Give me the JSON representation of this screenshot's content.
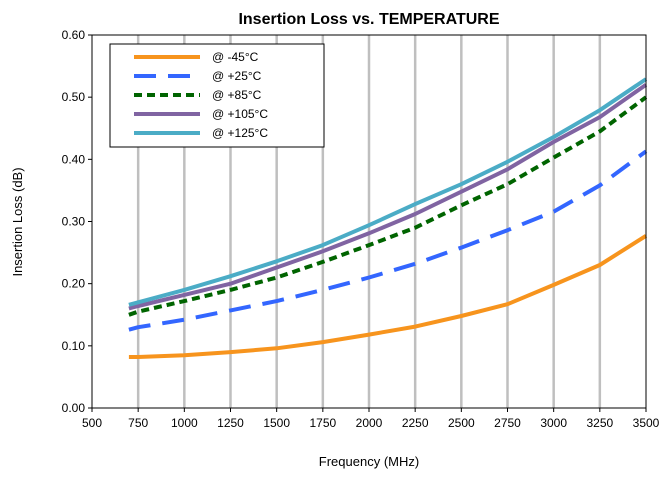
{
  "chart_data": {
    "type": "line",
    "title": "Insertion Loss vs. TEMPERATURE",
    "xlabel": "Frequency (MHz)",
    "ylabel": "Insertion Loss (dB)",
    "xlim": [
      500,
      3500
    ],
    "ylim": [
      0.0,
      0.6
    ],
    "x_ticks": [
      "500",
      "750",
      "1000",
      "1250",
      "1500",
      "1750",
      "2000",
      "2250",
      "2500",
      "2750",
      "3000",
      "3250",
      "3500"
    ],
    "y_ticks": [
      "0.00",
      "0.10",
      "0.20",
      "0.30",
      "0.40",
      "0.50",
      "0.60"
    ],
    "grid": "vertical",
    "legend_position": "top-left",
    "x": [
      700,
      750,
      1000,
      1250,
      1500,
      1750,
      2000,
      2250,
      2500,
      2750,
      3000,
      3250,
      3500
    ],
    "series": [
      {
        "name": "@ -45°C",
        "color": "#F7941D",
        "dash": "solid",
        "values": [
          0.082,
          0.082,
          0.085,
          0.09,
          0.096,
          0.106,
          0.118,
          0.131,
          0.148,
          0.167,
          0.198,
          0.23,
          0.277
        ]
      },
      {
        "name": "@ +25°C",
        "color": "#3366FF",
        "dash": "long",
        "values": [
          0.126,
          0.13,
          0.142,
          0.157,
          0.172,
          0.19,
          0.21,
          0.232,
          0.258,
          0.286,
          0.316,
          0.358,
          0.413
        ]
      },
      {
        "name": "@ +85°C",
        "color": "#006400",
        "dash": "short",
        "values": [
          0.15,
          0.155,
          0.172,
          0.19,
          0.21,
          0.235,
          0.262,
          0.29,
          0.326,
          0.36,
          0.403,
          0.445,
          0.5
        ]
      },
      {
        "name": "@ +105°C",
        "color": "#8064A2",
        "dash": "solid",
        "values": [
          0.16,
          0.164,
          0.182,
          0.2,
          0.226,
          0.252,
          0.281,
          0.312,
          0.348,
          0.384,
          0.428,
          0.468,
          0.52
        ]
      },
      {
        "name": "@ +125°C",
        "color": "#4BACC6",
        "dash": "solid",
        "values": [
          0.166,
          0.17,
          0.19,
          0.212,
          0.236,
          0.262,
          0.294,
          0.328,
          0.36,
          0.396,
          0.436,
          0.479,
          0.529
        ]
      }
    ]
  }
}
